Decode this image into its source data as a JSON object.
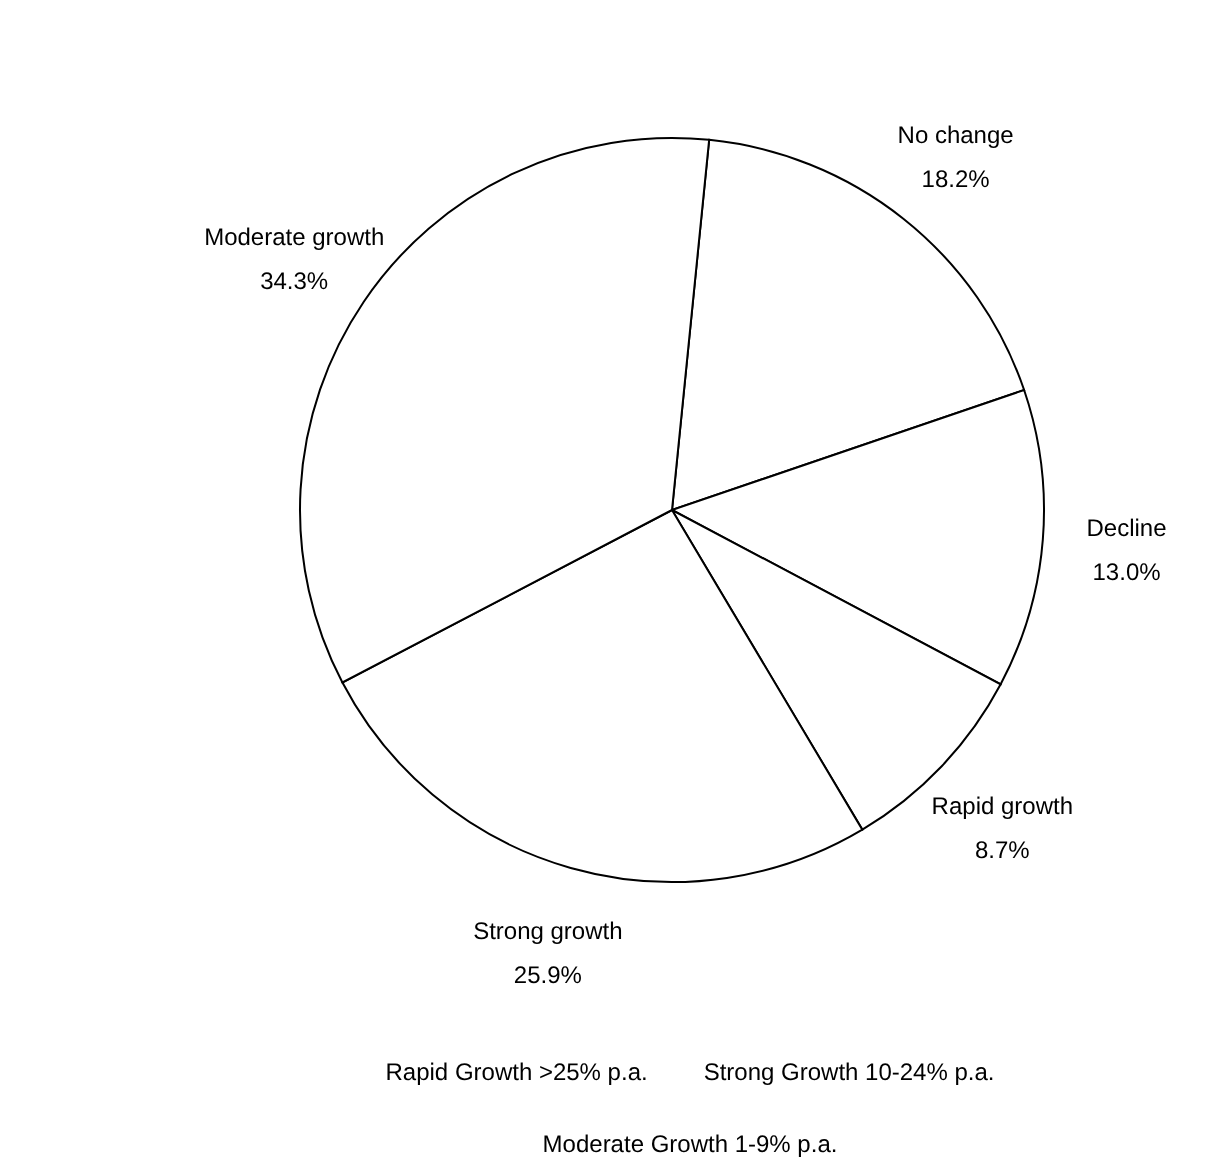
{
  "chart_data": {
    "type": "pie",
    "categories": [
      "No change",
      "Decline",
      "Rapid growth",
      "Strong growth",
      "Moderate growth"
    ],
    "values": [
      18.2,
      13.0,
      8.7,
      25.9,
      34.3
    ],
    "value_labels": [
      "18.2%",
      "13.0%",
      "8.7%",
      "25.9%",
      "34.3%"
    ],
    "colors": [
      "#ffffff",
      "#ffffff",
      "#ffffff",
      "#ffffff",
      "#ffffff"
    ],
    "annotations": [
      "Rapid Growth >25% p.a.",
      "Strong Growth 10-24% p.a.",
      "Moderate Growth 1-9% p.a."
    ]
  }
}
